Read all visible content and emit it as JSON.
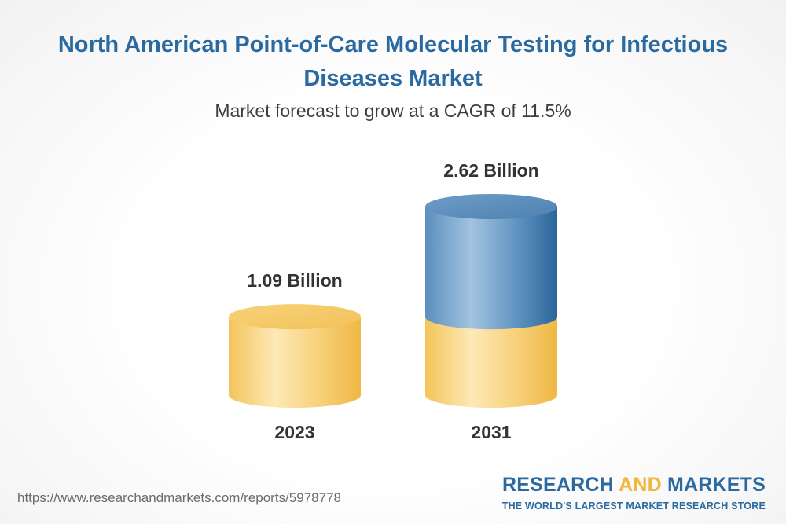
{
  "title": "North American Point-of-Care Molecular Testing for Infectious Diseases Market",
  "subtitle": "Market forecast to grow at a CAGR of 11.5%",
  "chart_data": {
    "type": "bar",
    "style": "3d-cylinder",
    "categories": [
      "2023",
      "2031"
    ],
    "values": [
      1.09,
      2.62
    ],
    "value_labels": [
      "1.09 Billion",
      "2.62 Billion"
    ],
    "unit": "Billion",
    "cagr": "11.5%",
    "xlabel": "",
    "ylabel": "",
    "grid": false,
    "colors": {
      "base": "#f5c85e",
      "base_light": "#fde8b4",
      "growth": "#2e6da1",
      "growth_light": "#9dbfdc"
    }
  },
  "footer": {
    "source_url": "https://www.researchandmarkets.com/reports/5978778",
    "logo_part1": "RESEARCH ",
    "logo_part2": "AND",
    "logo_part3": " MARKETS",
    "logo_tagline": "THE WORLD'S LARGEST MARKET RESEARCH STORE"
  }
}
